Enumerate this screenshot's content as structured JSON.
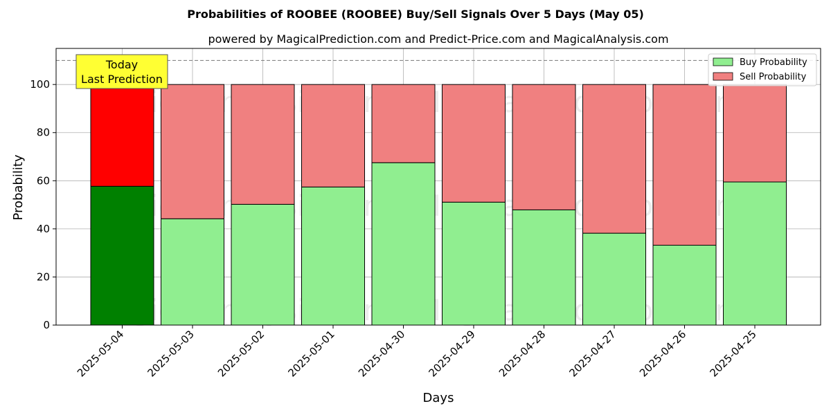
{
  "chart_data": {
    "type": "bar",
    "stacked": true,
    "title": "Probabilities of ROOBEE (ROOBEE) Buy/Sell Signals Over 5 Days (May 05)",
    "subtitle": "powered by MagicalPrediction.com and Predict-Price.com and MagicalAnalysis.com",
    "xlabel": "Days",
    "ylabel": "Probability",
    "ylim": [
      0,
      115
    ],
    "yticks": [
      0,
      20,
      40,
      60,
      80,
      100
    ],
    "reference_line": 110,
    "grid": true,
    "legend_position": "top-right",
    "categories": [
      "2025-05-04",
      "2025-05-03",
      "2025-05-02",
      "2025-05-01",
      "2025-04-30",
      "2025-04-29",
      "2025-04-28",
      "2025-04-27",
      "2025-04-26",
      "2025-04-25"
    ],
    "series": [
      {
        "name": "Buy Probability",
        "color": "#90ee90",
        "highlight_color": "#008000",
        "values": [
          57.7,
          44.2,
          50.2,
          57.4,
          67.5,
          51.1,
          47.9,
          38.2,
          33.2,
          59.5
        ]
      },
      {
        "name": "Sell Probability",
        "color": "#f08080",
        "highlight_color": "#ff0000",
        "values": [
          42.3,
          55.8,
          49.8,
          42.6,
          32.5,
          48.9,
          52.1,
          61.8,
          66.8,
          40.5
        ]
      }
    ],
    "highlight_index": 0,
    "annotation": {
      "line1": "Today",
      "line2": "Last Prediction",
      "color": "#ffff33"
    },
    "watermarks": [
      "MagicalAnalysis.com",
      "MagicalPrediction.com"
    ]
  }
}
